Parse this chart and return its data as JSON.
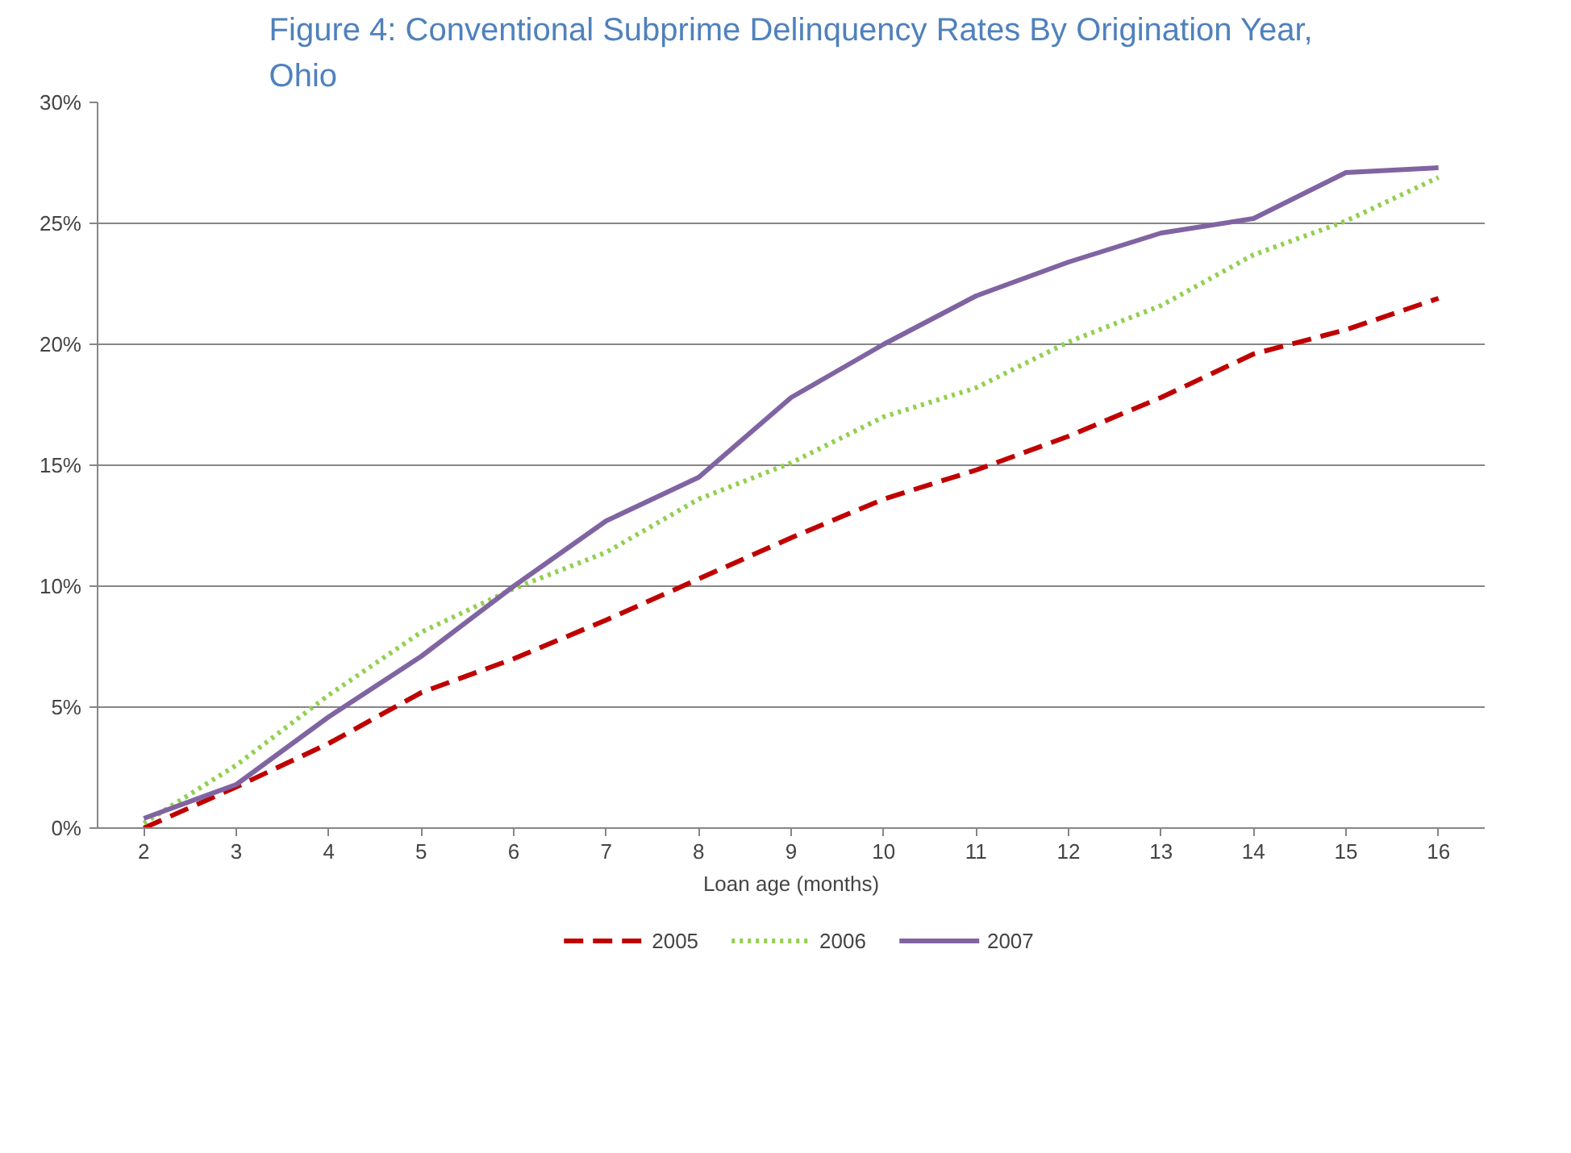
{
  "chart_data": {
    "type": "line",
    "title": "Figure 4: Conventional Subprime Delinquency Rates By Origination Year, Ohio",
    "xlabel": "Loan age (months)",
    "categories": [
      "2",
      "3",
      "4",
      "5",
      "6",
      "7",
      "8",
      "9",
      "10",
      "11",
      "12",
      "13",
      "14",
      "15",
      "16"
    ],
    "ylim": [
      0,
      30
    ],
    "yticks": [
      {
        "value": 0,
        "label": "0%"
      },
      {
        "value": 5,
        "label": "5%"
      },
      {
        "value": 10,
        "label": "10%"
      },
      {
        "value": 15,
        "label": "15%"
      },
      {
        "value": 20,
        "label": "20%"
      },
      {
        "value": 25,
        "label": "25%"
      },
      {
        "value": 30,
        "label": "30%"
      }
    ],
    "grid": "y",
    "legend": "bottom",
    "marker": "none",
    "series": [
      {
        "name": "2005",
        "color": "#c00000",
        "line_style": "dashed",
        "values": [
          0,
          1.7,
          3.5,
          5.6,
          7.0,
          8.6,
          10.3,
          12.0,
          13.6,
          14.8,
          16.2,
          17.8,
          19.6,
          20.6,
          21.9
        ]
      },
      {
        "name": "2006",
        "color": "#92d050",
        "line_style": "dotted",
        "values": [
          0.2,
          2.6,
          5.5,
          8.1,
          9.9,
          11.4,
          13.6,
          15.1,
          17.0,
          18.2,
          20.1,
          21.6,
          23.7,
          25.1,
          26.9
        ]
      },
      {
        "name": "2007",
        "color": "#8064a2",
        "line_style": "solid",
        "values": [
          0.4,
          1.8,
          4.6,
          7.1,
          10.0,
          12.7,
          14.5,
          17.8,
          20.0,
          22.0,
          23.4,
          24.6,
          25.2,
          27.1,
          27.3
        ]
      }
    ]
  }
}
